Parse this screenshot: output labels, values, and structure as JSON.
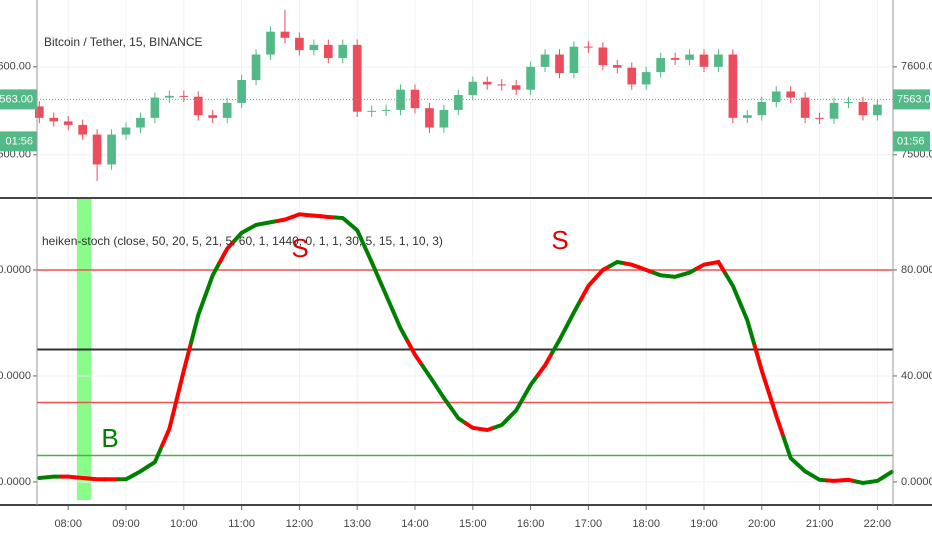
{
  "chart_data": [
    {
      "type": "candlestick",
      "title": "Bitcoin / Tether, 15, BINANCE",
      "x": [
        7.5,
        7.75,
        8,
        8.25,
        8.5,
        8.75,
        9,
        9.25,
        9.5,
        9.75,
        10,
        10.25,
        10.5,
        10.75,
        11,
        11.25,
        11.5,
        11.75,
        12,
        12.25,
        12.5,
        12.75,
        13,
        13.25,
        13.5,
        13.75,
        14,
        14.25,
        14.5,
        14.75,
        15,
        15.25,
        15.5,
        15.75,
        16,
        16.25,
        16.5,
        16.75,
        17,
        17.25,
        17.5,
        17.75,
        18,
        18.25,
        18.5,
        18.75,
        19,
        19.25,
        19.5,
        19.75,
        20,
        20.25,
        20.5,
        20.75,
        21,
        21.25,
        21.5,
        21.75,
        22
      ],
      "open": [
        7555,
        7542,
        7538,
        7534,
        7523,
        7489,
        7523,
        7531,
        7542,
        7565,
        7567,
        7566,
        7545,
        7542,
        7559,
        7585,
        7614,
        7640,
        7633,
        7619,
        7625,
        7610,
        7625,
        7549,
        7550,
        7551,
        7574,
        7553,
        7531,
        7551,
        7568,
        7583,
        7580,
        7579,
        7574,
        7600,
        7614,
        7593,
        7623,
        7622,
        7602,
        7599,
        7580,
        7594,
        7610,
        7608,
        7614,
        7600,
        7614,
        7542,
        7545,
        7560,
        7572,
        7565,
        7542,
        7541,
        7559,
        7560,
        7545
      ],
      "high": [
        7561,
        7548,
        7544,
        7540,
        7529,
        7529,
        7537,
        7548,
        7571,
        7573,
        7573,
        7572,
        7551,
        7565,
        7591,
        7620,
        7646,
        7665,
        7639,
        7631,
        7631,
        7631,
        7631,
        7556,
        7557,
        7580,
        7580,
        7559,
        7557,
        7574,
        7589,
        7589,
        7586,
        7585,
        7606,
        7620,
        7620,
        7629,
        7629,
        7628,
        7608,
        7605,
        7600,
        7616,
        7616,
        7620,
        7620,
        7620,
        7620,
        7551,
        7566,
        7578,
        7578,
        7571,
        7548,
        7565,
        7566,
        7566,
        7563
      ],
      "low": [
        7536,
        7532,
        7528,
        7517,
        7470,
        7483,
        7517,
        7525,
        7536,
        7559,
        7560,
        7539,
        7536,
        7536,
        7553,
        7579,
        7608,
        7627,
        7613,
        7613,
        7604,
        7604,
        7543,
        7543,
        7544,
        7545,
        7547,
        7525,
        7525,
        7545,
        7562,
        7574,
        7573,
        7568,
        7568,
        7594,
        7587,
        7587,
        7616,
        7596,
        7593,
        7574,
        7574,
        7588,
        7602,
        7602,
        7594,
        7594,
        7536,
        7536,
        7539,
        7554,
        7559,
        7536,
        7535,
        7535,
        7553,
        7539,
        7539
      ],
      "close": [
        7542,
        7538,
        7534,
        7523,
        7489,
        7523,
        7531,
        7542,
        7565,
        7567,
        7566,
        7545,
        7542,
        7559,
        7585,
        7614,
        7640,
        7633,
        7619,
        7625,
        7610,
        7625,
        7549,
        7550,
        7551,
        7574,
        7553,
        7531,
        7551,
        7568,
        7583,
        7580,
        7579,
        7574,
        7600,
        7614,
        7593,
        7623,
        7622,
        7602,
        7599,
        7580,
        7594,
        7610,
        7608,
        7614,
        7600,
        7614,
        7542,
        7545,
        7560,
        7572,
        7565,
        7542,
        7541,
        7559,
        7560,
        7545,
        7557
      ],
      "up_color": "#53b987",
      "down_color": "#eb4d5c",
      "xlim": [
        7.46,
        22.27
      ],
      "ylim": [
        7452,
        7676
      ],
      "yticks": [
        {
          "value": 7600,
          "label": "7600.00"
        },
        {
          "value": 7500,
          "label": "7500.00"
        }
      ],
      "last_price": {
        "value": 7563,
        "label": "7563.00"
      },
      "countdown": "01:56",
      "grid": true
    },
    {
      "type": "line",
      "title": "heiken-stoch (close, 50, 20, 5, 21, 5, 60, 1, 1440, 0, 1, 1, 30, 5, 15, 1, 10, 3)",
      "x": [
        7.5,
        7.75,
        8,
        8.25,
        8.5,
        8.75,
        9,
        9.25,
        9.5,
        9.75,
        10,
        10.25,
        10.5,
        10.75,
        11,
        11.25,
        11.5,
        11.75,
        12,
        12.25,
        12.5,
        12.75,
        13,
        13.25,
        13.5,
        13.75,
        14,
        14.25,
        14.5,
        14.75,
        15,
        15.25,
        15.5,
        15.75,
        16,
        16.25,
        16.5,
        16.75,
        17,
        17.25,
        17.5,
        17.75,
        18,
        18.25,
        18.5,
        18.75,
        19,
        19.25,
        19.5,
        19.75,
        20,
        20.25,
        20.5,
        20.75,
        21,
        21.25,
        21.5,
        21.75,
        22,
        22.25
      ],
      "values": [
        1.5,
        2,
        2,
        1.5,
        1,
        1,
        1,
        4,
        7.5,
        20,
        42,
        63,
        78,
        88,
        94,
        97,
        98,
        99,
        101,
        100.5,
        100,
        99.6,
        95,
        83,
        70.5,
        58,
        48,
        40,
        31.7,
        24,
        20.4,
        19.6,
        21.5,
        27,
        36.6,
        44,
        53.6,
        64,
        74,
        80,
        83,
        82,
        80,
        78,
        77.4,
        79,
        82,
        83,
        74,
        61,
        42,
        25,
        9,
        4,
        0.8,
        0.4,
        0.8,
        -0.4,
        0.4,
        3.8
      ],
      "point_colors": [
        "#008000",
        "#008000",
        "#ff0000",
        "#ff0000",
        "#ff0000",
        "#ff0000",
        "#008000",
        "#008000",
        "#008000",
        "#ff0000",
        "#ff0000",
        "#008000",
        "#008000",
        "#ff0000",
        "#008000",
        "#008000",
        "#008000",
        "#ff0000",
        "#ff0000",
        "#ff0000",
        "#ff0000",
        "#008000",
        "#008000",
        "#008000",
        "#008000",
        "#008000",
        "#ff0000",
        "#008000",
        "#008000",
        "#008000",
        "#ff0000",
        "#ff0000",
        "#008000",
        "#008000",
        "#008000",
        "#ff0000",
        "#008000",
        "#008000",
        "#ff0000",
        "#ff0000",
        "#008000",
        "#ff0000",
        "#ff0000",
        "#008000",
        "#008000",
        "#008000",
        "#ff0000",
        "#ff0000",
        "#008000",
        "#008000",
        "#ff0000",
        "#ff0000",
        "#008000",
        "#008000",
        "#008000",
        "#ff0000",
        "#ff0000",
        "#008000",
        "#008000",
        "#008000"
      ],
      "levels": [
        {
          "value": 80,
          "color": "#f05050"
        },
        {
          "value": 50,
          "color": "#333333"
        },
        {
          "value": 30,
          "color": "#f05050"
        },
        {
          "value": 10,
          "color": "#4caf50"
        }
      ],
      "highlight": {
        "x": [
          8.15,
          8.4
        ],
        "color": "#7cfc7c"
      },
      "annotations": [
        {
          "text": "B",
          "color": "#008000"
        },
        {
          "text": "S",
          "color": "#e00000"
        },
        {
          "text": "S",
          "color": "#e00000"
        }
      ],
      "xlim": [
        7.46,
        22.27
      ],
      "ylim": [
        -8.7,
        106.4
      ],
      "yticks": [
        {
          "value": 0,
          "label": "0.0000"
        },
        {
          "value": 40,
          "label": "40.0000"
        },
        {
          "value": 80,
          "label": "80.0000"
        }
      ],
      "xticks": [
        {
          "value": 8,
          "label": "08:00"
        },
        {
          "value": 9,
          "label": "09:00"
        },
        {
          "value": 10,
          "label": "10:00"
        },
        {
          "value": 11,
          "label": "11:00"
        },
        {
          "value": 12,
          "label": "12:00"
        },
        {
          "value": 13,
          "label": "13:00"
        },
        {
          "value": 14,
          "label": "14:00"
        },
        {
          "value": 15,
          "label": "15:00"
        },
        {
          "value": 16,
          "label": "16:00"
        },
        {
          "value": 17,
          "label": "17:00"
        },
        {
          "value": 18,
          "label": "18:00"
        },
        {
          "value": 19,
          "label": "19:00"
        },
        {
          "value": 20,
          "label": "20:00"
        },
        {
          "value": 21,
          "label": "21:00"
        },
        {
          "value": 22,
          "label": "22:00"
        }
      ],
      "grid": true
    }
  ]
}
